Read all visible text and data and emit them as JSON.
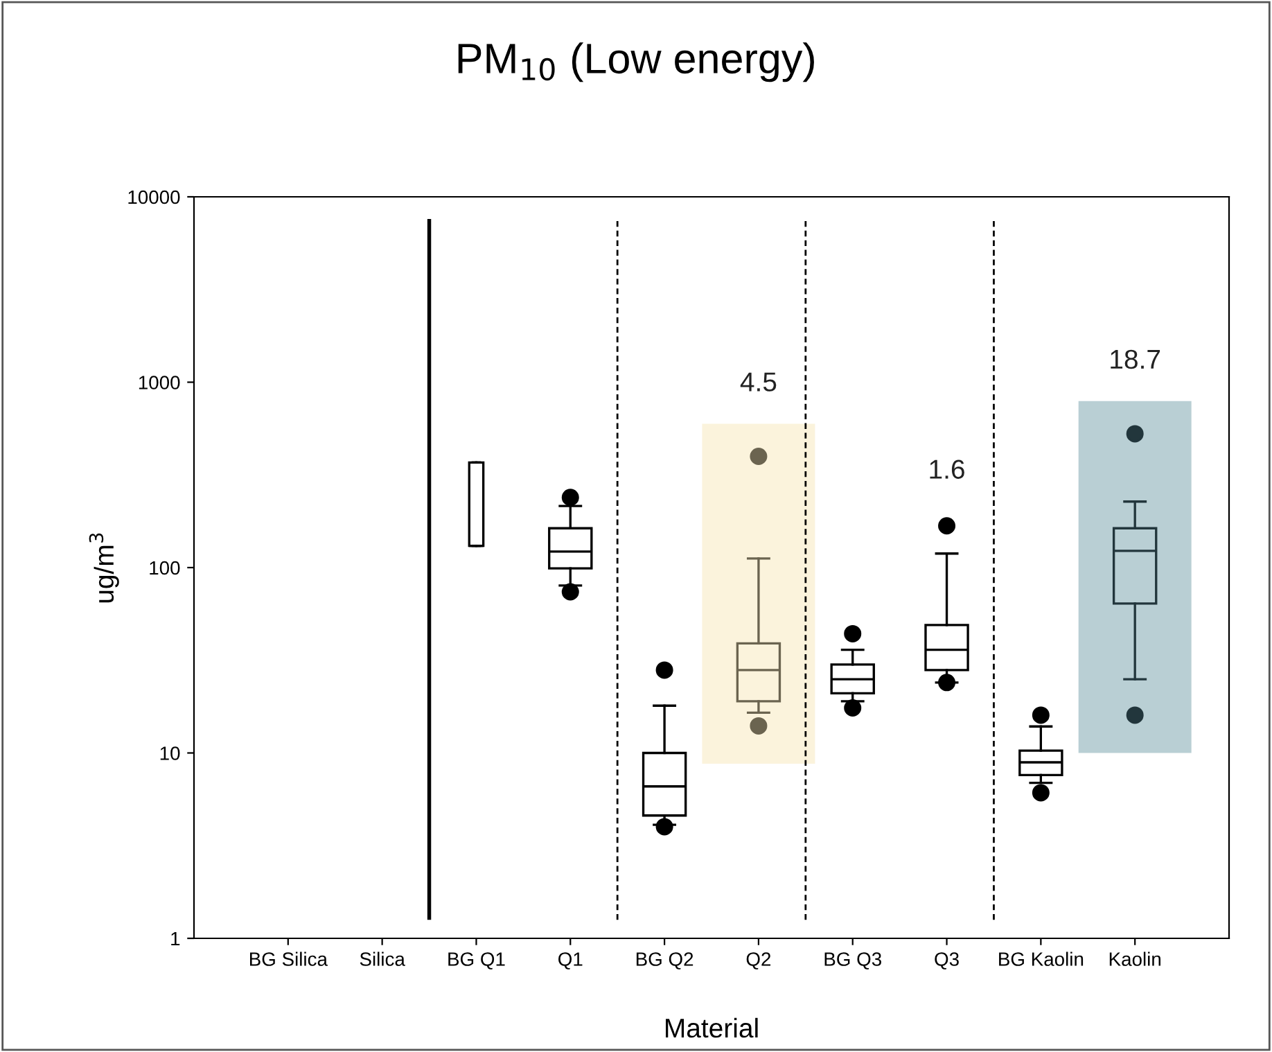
{
  "chart_data": {
    "type": "box",
    "title": "PM$_{10}$ (Low energy)",
    "xlabel": "Material",
    "ylabel": "ug/m$^{3}$",
    "categories": [
      "BG Silica",
      "Silica",
      "BG Q1",
      "Q1",
      "BG Q2",
      "Q2",
      "BG Q3",
      "Q3",
      "BG Kaolin",
      "Kaolin"
    ],
    "boxes": [
      null,
      null,
      {
        "low": 131,
        "q1": 131,
        "median": 131,
        "q3": 369,
        "high": 369
      },
      {
        "low": 80,
        "q1": 99,
        "median": 122,
        "q3": 163,
        "high": 215,
        "outliers": [
          74,
          239
        ]
      },
      {
        "low": 4.1,
        "q1": 4.6,
        "median": 6.6,
        "q3": 10,
        "high": 18,
        "outliers": [
          4.0,
          28
        ]
      },
      {
        "low": 16.5,
        "q1": 19,
        "median": 28,
        "q3": 39,
        "high": 112,
        "outliers": [
          14,
          398
        ]
      },
      {
        "low": 19,
        "q1": 21,
        "median": 25,
        "q3": 30,
        "high": 36,
        "outliers": [
          17.5,
          44
        ]
      },
      {
        "low": 24,
        "q1": 28,
        "median": 36,
        "q3": 49,
        "high": 119,
        "outliers": [
          24,
          168
        ]
      },
      {
        "low": 6.9,
        "q1": 7.6,
        "median": 8.9,
        "q3": 10.3,
        "high": 13.9,
        "outliers": [
          6.1,
          16
        ]
      },
      {
        "low": 25,
        "q1": 64,
        "median": 123,
        "q3": 163,
        "high": 227,
        "outliers": [
          16,
          527
        ]
      }
    ],
    "colors": [
      "#000000",
      "#000000",
      "#000000",
      "#000000",
      "#000000",
      "#6b6450",
      "#000000",
      "#000000",
      "#000000",
      "#22363c"
    ],
    "value_labels": [
      null,
      null,
      null,
      null,
      null,
      "4.5",
      null,
      "1.6",
      null,
      "18.7"
    ],
    "log": "y",
    "ylim": [
      1,
      10000
    ],
    "yticks": [
      1,
      10,
      100,
      1000,
      10000
    ],
    "grid": false,
    "legend": false
  }
}
